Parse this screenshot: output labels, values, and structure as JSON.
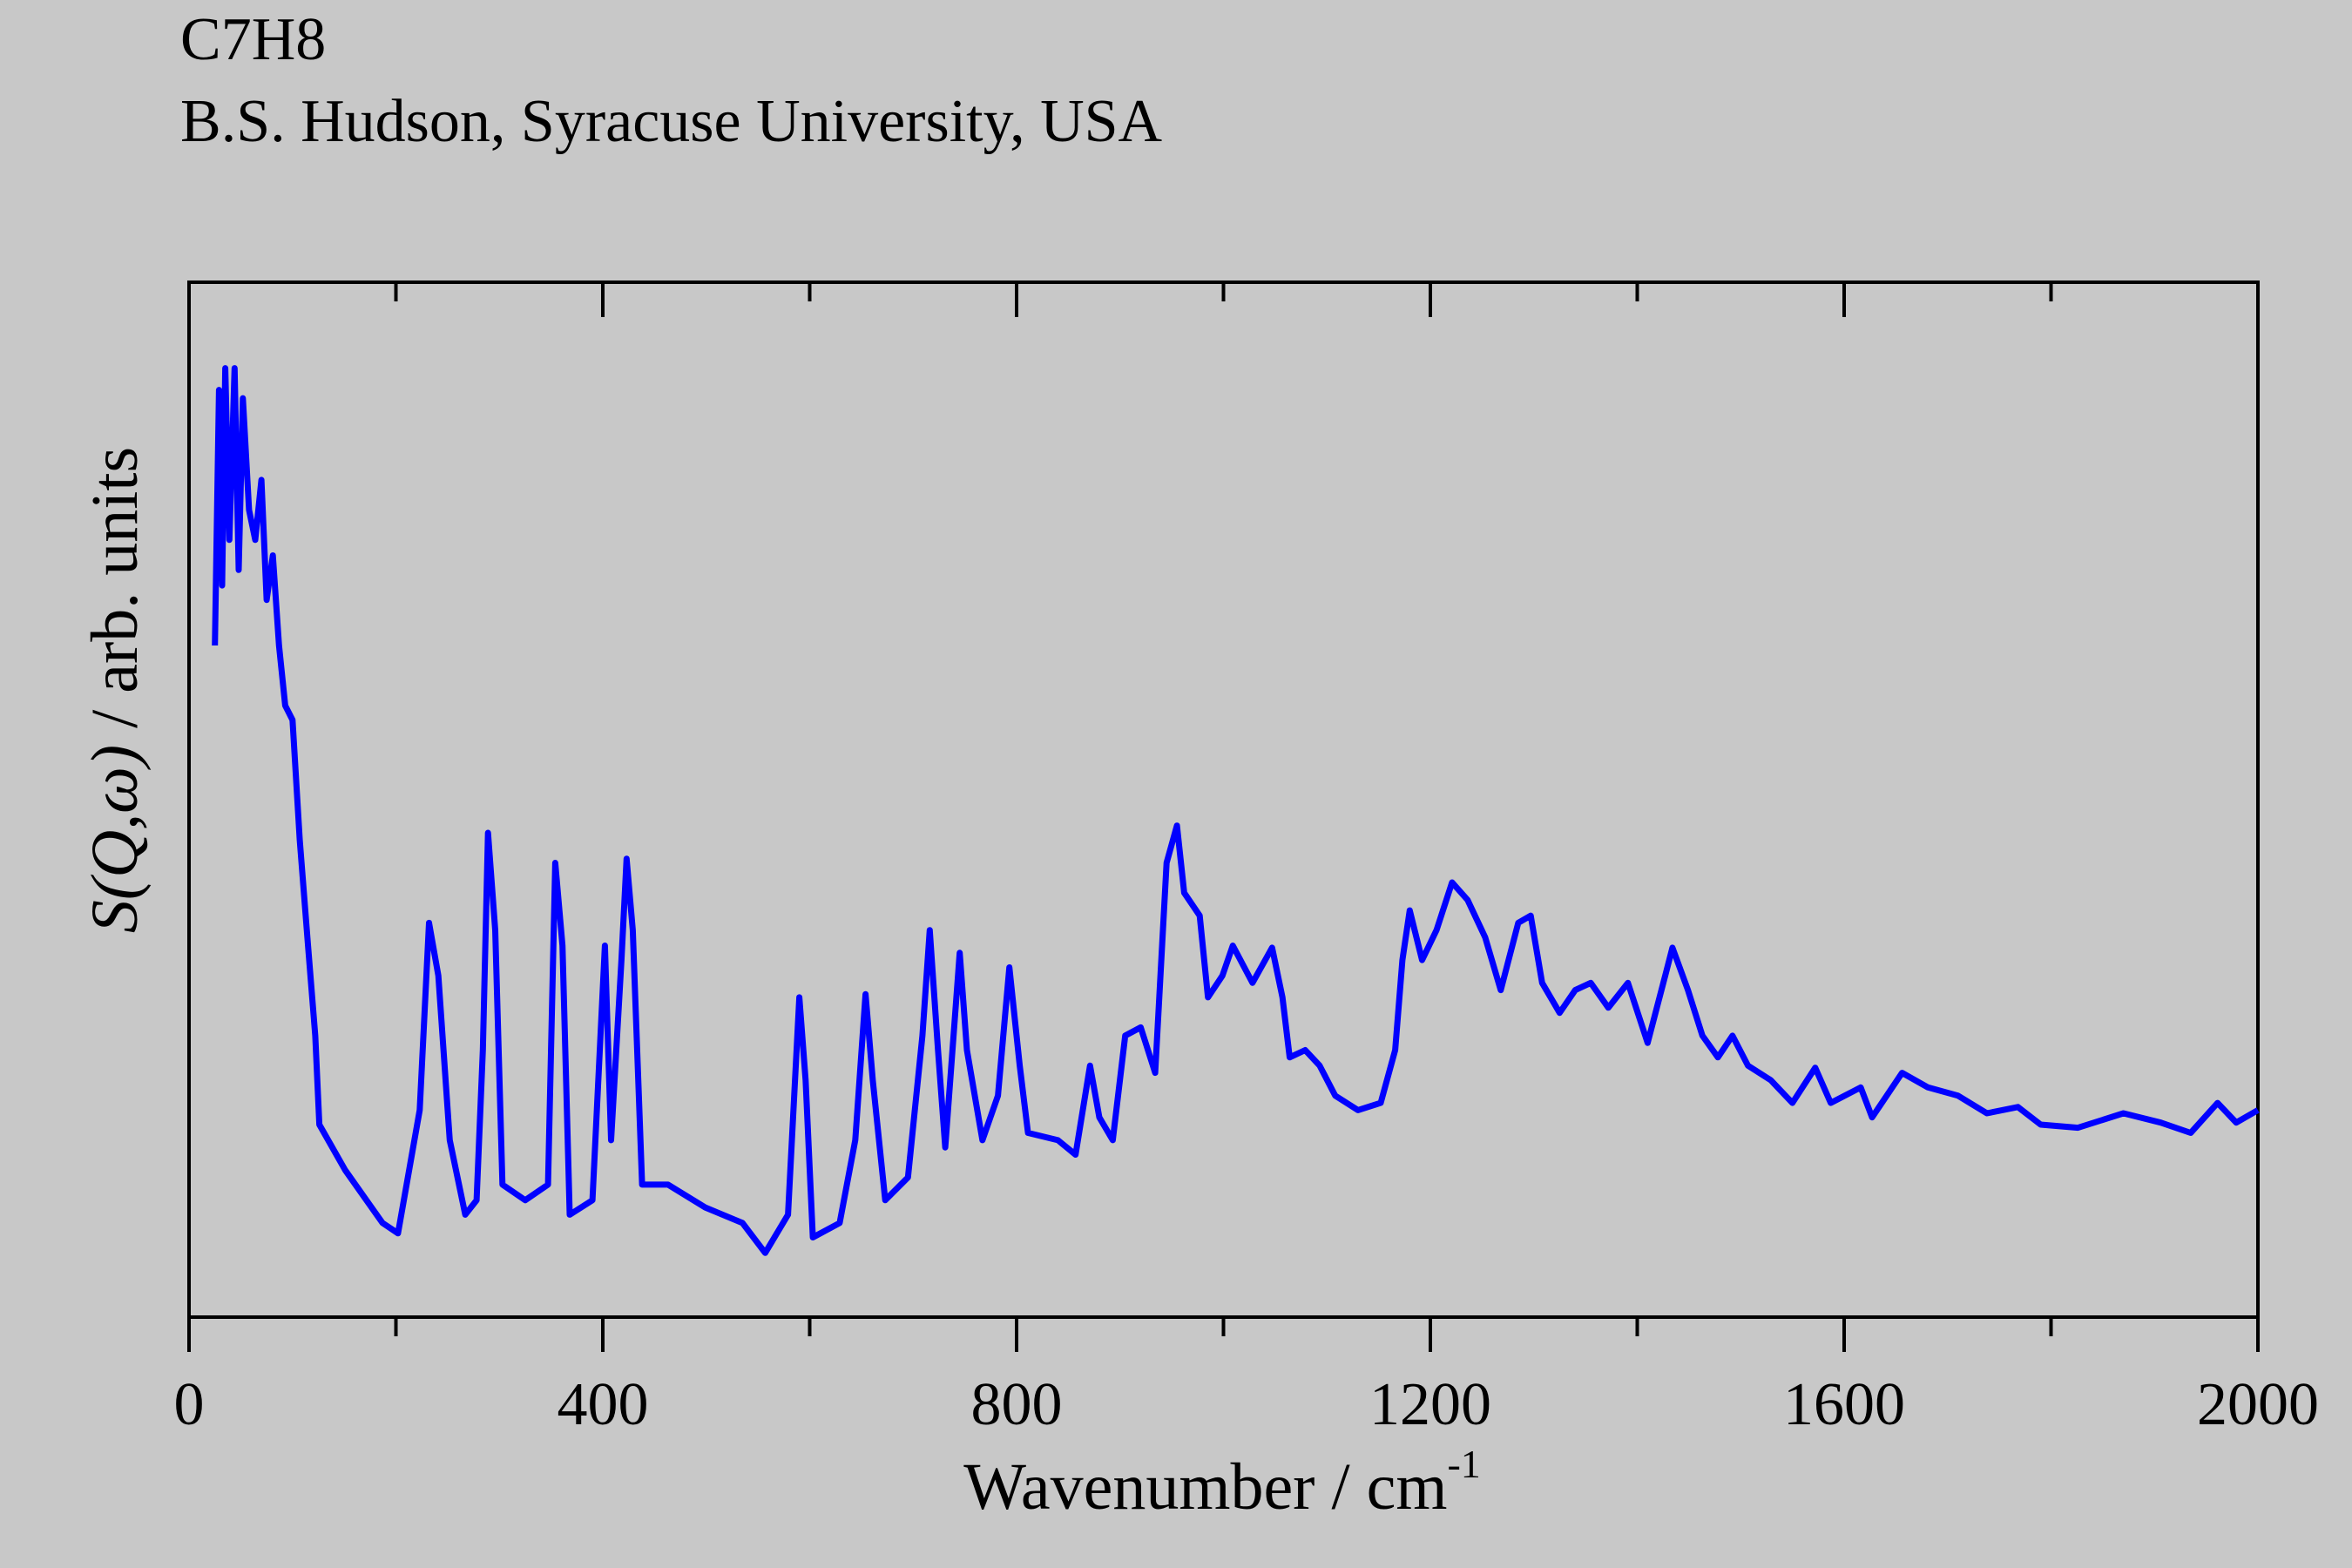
{
  "chart_data": {
    "type": "line",
    "title": "C7H8",
    "subtitle": "B.S. Hudson, Syracuse University, USA",
    "x_label": "Wavenumber / cm",
    "x_label_superscript": "-1",
    "y_label_symbol": "S(Q,ω)",
    "y_label": " / arb. units",
    "xlim": [
      0,
      2000
    ],
    "xticks": [
      0,
      400,
      800,
      1200,
      1600,
      2000
    ],
    "xminorticks": [
      200,
      600,
      1000,
      1400,
      1800
    ],
    "ylim": [
      0,
      100
    ],
    "grid": false,
    "series": [
      {
        "color": "#0000ff",
        "x": [
          25,
          29,
          32,
          35,
          39,
          44,
          48,
          52,
          58,
          64,
          70,
          75,
          81,
          87,
          93,
          100,
          107,
          115,
          122,
          126,
          151,
          187,
          202,
          223,
          232,
          241,
          252,
          267,
          278,
          284,
          289,
          296,
          303,
          325,
          347,
          354,
          361,
          368,
          390,
          402,
          408,
          418,
          423,
          429,
          438,
          463,
          499,
          535,
          557,
          579,
          590,
          596,
          603,
          629,
          644,
          654,
          661,
          673,
          695,
          709,
          716,
          724,
          731,
          745,
          752,
          767,
          782,
          793,
          803,
          811,
          840,
          857,
          871,
          880,
          893,
          905,
          920,
          934,
          945,
          955,
          962,
          977,
          985,
          999,
          1009,
          1028,
          1047,
          1057,
          1064,
          1079,
          1093,
          1108,
          1130,
          1152,
          1166,
          1173,
          1180,
          1192,
          1206,
          1221,
          1236,
          1253,
          1268,
          1285,
          1297,
          1308,
          1325,
          1340,
          1355,
          1372,
          1391,
          1410,
          1427,
          1434,
          1449,
          1463,
          1478,
          1492,
          1507,
          1529,
          1550,
          1572,
          1587,
          1616,
          1627,
          1656,
          1681,
          1710,
          1738,
          1768,
          1790,
          1826,
          1870,
          1906,
          1935,
          1961,
          1979,
          2000
        ],
        "values": [
          64.9,
          89.6,
          70.7,
          91.7,
          75.1,
          91.7,
          72.2,
          88.8,
          78.0,
          75.1,
          80.9,
          69.3,
          73.6,
          64.9,
          59.1,
          57.7,
          46.1,
          35.9,
          27.2,
          18.6,
          14.2,
          9.1,
          8.1,
          20.0,
          38.1,
          33.0,
          17.1,
          9.9,
          11.3,
          25.8,
          46.8,
          37.4,
          12.8,
          11.3,
          12.8,
          43.9,
          35.9,
          9.9,
          11.3,
          35.9,
          17.1,
          34.5,
          44.3,
          37.4,
          12.8,
          12.8,
          10.6,
          9.1,
          6.2,
          9.9,
          30.9,
          22.9,
          7.7,
          9.1,
          17.1,
          31.2,
          22.9,
          11.3,
          13.5,
          27.2,
          37.4,
          25.8,
          16.4,
          35.2,
          25.8,
          17.1,
          21.4,
          33.8,
          24.3,
          17.8,
          17.1,
          15.7,
          24.3,
          19.3,
          17.1,
          27.2,
          28.0,
          23.6,
          43.9,
          47.5,
          41.0,
          38.8,
          30.9,
          33.0,
          35.9,
          32.3,
          35.7,
          30.9,
          25.1,
          25.8,
          24.3,
          21.4,
          20.0,
          20.7,
          25.8,
          34.5,
          39.3,
          34.5,
          37.4,
          42.0,
          40.3,
          36.7,
          31.6,
          38.1,
          38.8,
          32.3,
          29.4,
          31.6,
          32.3,
          29.9,
          32.3,
          26.5,
          33.0,
          35.7,
          31.6,
          27.2,
          25.1,
          27.2,
          24.3,
          22.9,
          20.7,
          24.1,
          20.7,
          22.2,
          19.3,
          23.6,
          22.2,
          21.4,
          19.7,
          20.3,
          18.6,
          18.3,
          19.7,
          18.8,
          17.8,
          20.7,
          18.8,
          20.0
        ]
      }
    ]
  }
}
